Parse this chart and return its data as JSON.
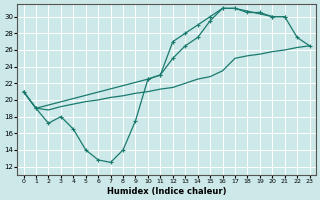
{
  "background_color": "#cce8e8",
  "grid_color": "#e0f0f0",
  "line_color": "#1a7a6e",
  "xlabel": "Humidex (Indice chaleur)",
  "xlim": [
    -0.5,
    23.5
  ],
  "ylim": [
    11,
    31.5
  ],
  "xticks": [
    0,
    1,
    2,
    3,
    4,
    5,
    6,
    7,
    8,
    9,
    10,
    11,
    12,
    13,
    14,
    15,
    16,
    17,
    18,
    19,
    20,
    21,
    22,
    23
  ],
  "yticks": [
    12,
    14,
    16,
    18,
    20,
    22,
    24,
    26,
    28,
    30
  ],
  "curve1_x": [
    0,
    1,
    2,
    3,
    4,
    5,
    6,
    7,
    8,
    9,
    10,
    11,
    12,
    13,
    14,
    15,
    16,
    17,
    18,
    19,
    20,
    21
  ],
  "curve1_y": [
    21.0,
    19.0,
    17.2,
    18.0,
    16.5,
    14.0,
    12.8,
    12.5,
    14.0,
    17.5,
    22.5,
    23.0,
    27.0,
    28.0,
    29.0,
    30.0,
    31.0,
    31.0,
    30.5,
    30.5,
    30.0,
    30.0
  ],
  "curve2_x": [
    0,
    1,
    10,
    11,
    12,
    13,
    14,
    15,
    16,
    17,
    20,
    21,
    22,
    23
  ],
  "curve2_y": [
    21.0,
    19.0,
    22.5,
    23.0,
    25.0,
    26.5,
    27.5,
    29.5,
    31.0,
    31.0,
    30.0,
    30.0,
    27.5,
    26.5
  ],
  "curve3_x": [
    0,
    1,
    2,
    3,
    4,
    5,
    6,
    7,
    8,
    9,
    10,
    11,
    12,
    13,
    14,
    15,
    16,
    17,
    18,
    19,
    20,
    21,
    22,
    23
  ],
  "curve3_y": [
    21.0,
    19.0,
    18.8,
    19.2,
    19.5,
    19.8,
    20.0,
    20.3,
    20.5,
    20.8,
    21.0,
    21.3,
    21.5,
    22.0,
    22.5,
    22.8,
    23.5,
    25.0,
    25.3,
    25.5,
    25.8,
    26.0,
    26.3,
    26.5
  ]
}
